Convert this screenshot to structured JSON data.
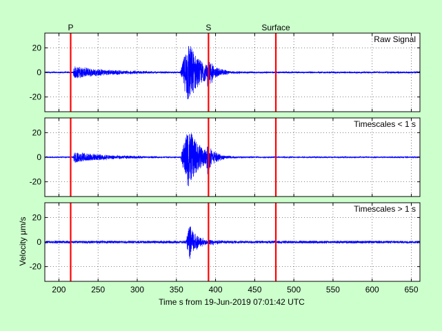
{
  "chart_data": {
    "type": "line",
    "xlabel": "Time s from 19-Jun-2019 07:01:42 UTC",
    "ylabel": "Velocity μm/s",
    "xlim": [
      182,
      661
    ],
    "ylim": [
      -32,
      32
    ],
    "xticks": [
      200,
      250,
      300,
      350,
      400,
      450,
      500,
      550,
      600,
      650
    ],
    "yticks": [
      -20,
      0,
      20
    ],
    "grid": true,
    "series_color": "#0000ff",
    "marker_color": "#ff0000",
    "markers": [
      {
        "label": "P",
        "x": 215
      },
      {
        "label": "S",
        "x": 391
      },
      {
        "label": "Surface",
        "x": 477
      }
    ],
    "panels": [
      {
        "name": "Raw Signal",
        "events": [
          {
            "start": 182,
            "end": 661,
            "amp": 0.6
          },
          {
            "start": 218,
            "end": 325,
            "amp": 5,
            "decay": 45
          },
          {
            "start": 355,
            "end": 470,
            "amp": 27,
            "decay": 16,
            "rise": 10
          },
          {
            "start": 388,
            "end": 430,
            "amp": 10,
            "decay": 8
          }
        ]
      },
      {
        "name": "Timescales < 1 s",
        "events": [
          {
            "start": 182,
            "end": 661,
            "amp": 0.5
          },
          {
            "start": 218,
            "end": 325,
            "amp": 4.5,
            "decay": 45
          },
          {
            "start": 355,
            "end": 470,
            "amp": 25,
            "decay": 16,
            "rise": 10
          },
          {
            "start": 388,
            "end": 430,
            "amp": 9,
            "decay": 8
          }
        ]
      },
      {
        "name": "Timescales > 1 s",
        "events": [
          {
            "start": 182,
            "end": 661,
            "amp": 1.0
          },
          {
            "start": 362,
            "end": 405,
            "amp": 14,
            "decay": 10,
            "rise": 5
          },
          {
            "start": 390,
            "end": 440,
            "amp": 2,
            "decay": 15
          }
        ]
      }
    ]
  }
}
